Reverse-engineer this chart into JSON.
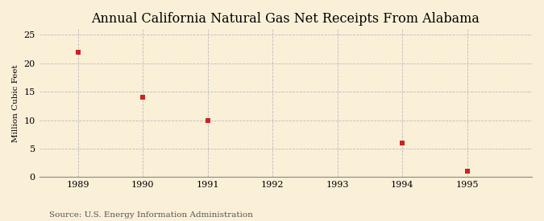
{
  "title": "Annual California Natural Gas Net Receipts From Alabama",
  "ylabel": "Million Cubic Feet",
  "source": "Source: U.S. Energy Information Administration",
  "x": [
    1989,
    1990,
    1991,
    1994,
    1995
  ],
  "y": [
    22,
    14,
    10,
    6,
    1
  ],
  "marker_color": "#cc2222",
  "marker": "s",
  "marker_size": 4,
  "xlim": [
    1988.4,
    1996.0
  ],
  "ylim": [
    0,
    26
  ],
  "yticks": [
    0,
    5,
    10,
    15,
    20,
    25
  ],
  "xticks": [
    1989,
    1990,
    1991,
    1992,
    1993,
    1994,
    1995
  ],
  "background_color": "#faf0d8",
  "grid_color": "#bbbbbb",
  "title_fontsize": 11.5,
  "label_fontsize": 7.5,
  "tick_fontsize": 8,
  "source_fontsize": 7.5
}
